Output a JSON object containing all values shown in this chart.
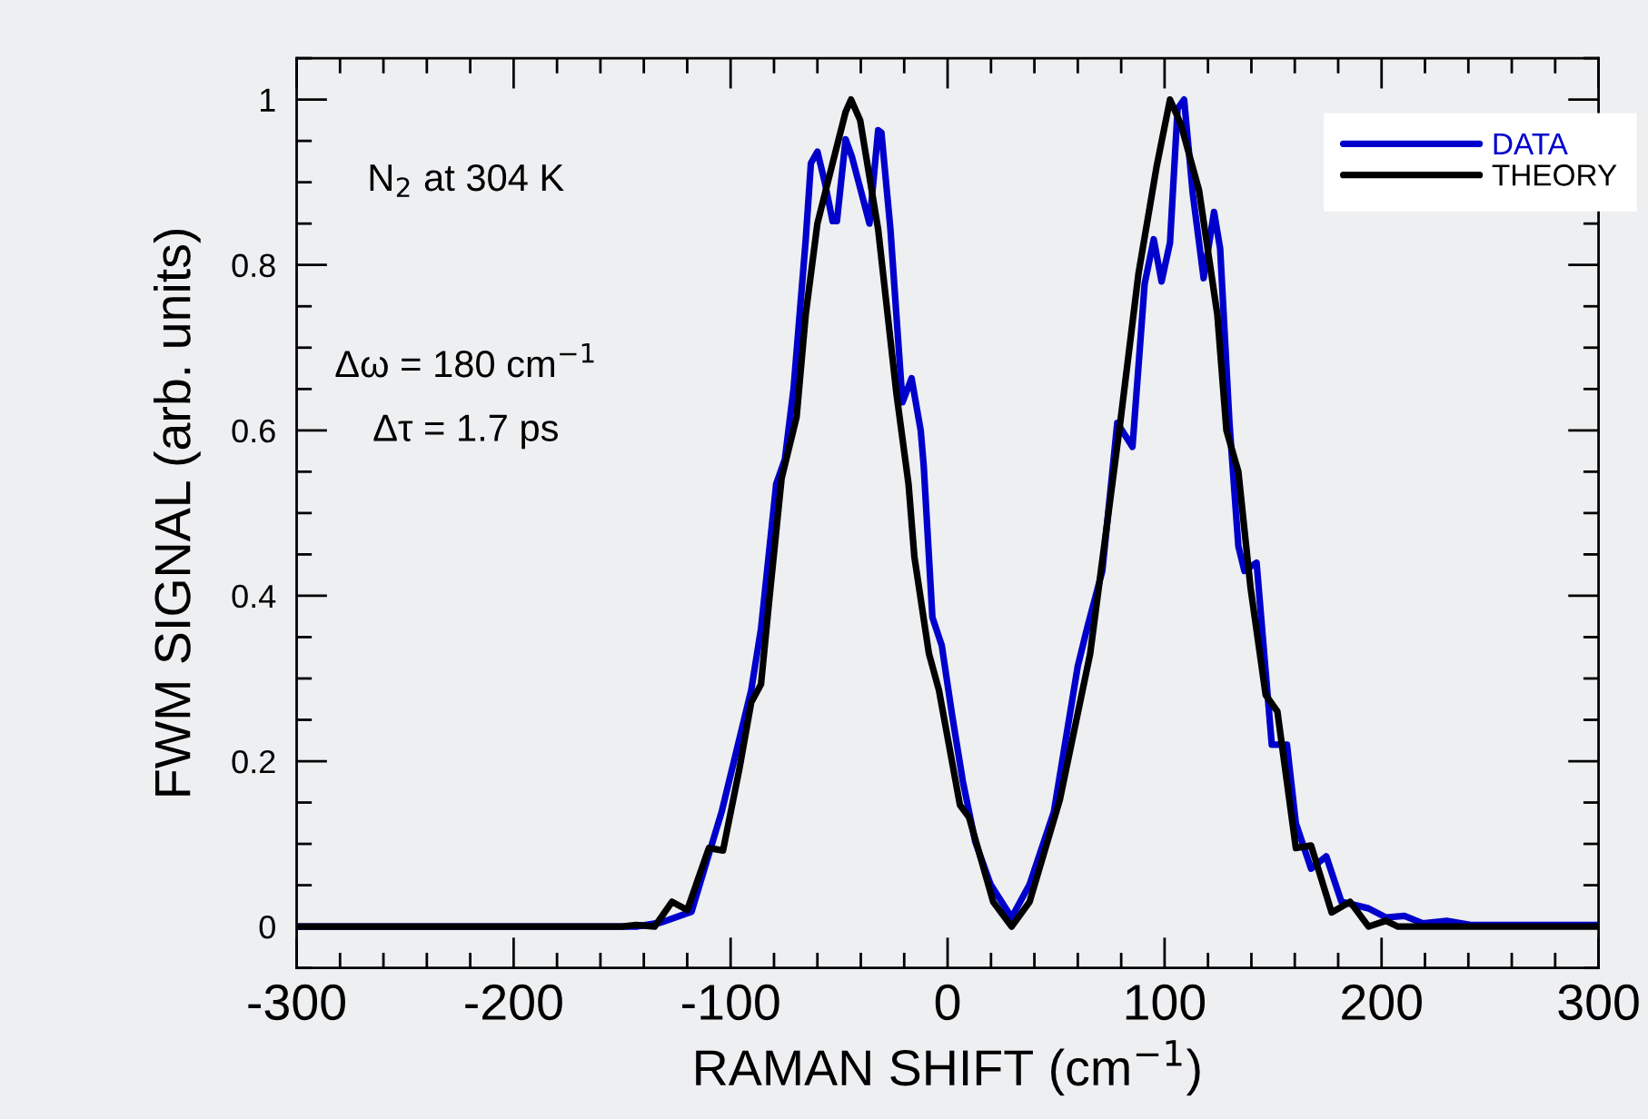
{
  "chart_data": {
    "type": "line",
    "xlabel": "RAMAN SHIFT (cm$^{−1}$)",
    "ylabel": "FWM SIGNAL (arb. units)",
    "xlim": [
      -300,
      300
    ],
    "ylim": [
      -0.05,
      1.05
    ],
    "xticks": [
      -300,
      -200,
      -100,
      0,
      100,
      200,
      300
    ],
    "yticks": [
      0,
      0.2,
      0.4,
      0.6,
      0.8,
      1
    ],
    "grid": false,
    "legend": "top right",
    "marker": "none",
    "line_style": "solid",
    "annotations": [
      "N$_{2}$ at 304 K",
      "Δω = 180 cm$^{−1}$",
      "Δτ = 1.7 ps"
    ],
    "series": [
      {
        "name": "DATA",
        "color": "#0000cc",
        "x": [
          -300,
          -190,
          -143.5,
          -132,
          -118,
          -104,
          -90.5,
          -86,
          -79,
          -75,
          -71,
          -65.4,
          -63,
          -60,
          -56.6,
          -53,
          -51,
          -47,
          -44,
          -36,
          -32,
          -30.5,
          -26.4,
          -20.8,
          -16.6,
          -12.4,
          -11,
          -7,
          -2.7,
          2,
          7,
          12.7,
          19.8,
          29.5,
          37.8,
          49,
          60,
          64.5,
          71.3,
          78.2,
          85.2,
          90.8,
          95,
          98.6,
          102.5,
          106,
          109,
          113,
          118,
          122.8,
          125.6,
          129.9,
          134,
          136.8,
          142.4,
          149.4,
          156.4,
          160.5,
          167.5,
          174.5,
          181.5,
          194,
          202,
          210.5,
          219,
          230,
          241,
          300
        ],
        "values": [
          0,
          0,
          0,
          0.005,
          0.018,
          0.14,
          0.286,
          0.36,
          0.535,
          0.565,
          0.65,
          0.83,
          0.923,
          0.937,
          0.9,
          0.853,
          0.853,
          0.952,
          0.93,
          0.85,
          0.963,
          0.96,
          0.845,
          0.634,
          0.663,
          0.6,
          0.557,
          0.374,
          0.34,
          0.257,
          0.176,
          0.103,
          0.051,
          0.011,
          0.051,
          0.139,
          0.315,
          0.363,
          0.43,
          0.609,
          0.58,
          0.777,
          0.831,
          0.78,
          0.827,
          0.989,
          1.0,
          0.886,
          0.784,
          0.864,
          0.82,
          0.609,
          0.46,
          0.43,
          0.44,
          0.22,
          0.22,
          0.125,
          0.07,
          0.085,
          0.03,
          0.022,
          0.011,
          0.013,
          0.004,
          0.007,
          0.002,
          0.002
        ]
      },
      {
        "name": "THEORY",
        "color": "#000000",
        "x": [
          -300,
          -150,
          -143.5,
          -135,
          -127,
          -120,
          -110,
          -103.5,
          -96,
          -90.5,
          -86,
          -82,
          -76.5,
          -69.6,
          -65.4,
          -60,
          -53,
          -47,
          -44.5,
          -40.3,
          -32,
          -23.6,
          -18,
          -15.3,
          -8.6,
          -4,
          5.7,
          9.9,
          21,
          29.5,
          37.8,
          51.7,
          65.7,
          79.6,
          88,
          96.4,
          102.5,
          107.5,
          115.9,
          124.3,
          128.5,
          134,
          139.6,
          146.6,
          152,
          160.5,
          167.5,
          177,
          185.5,
          194,
          202,
          207.6,
          300
        ],
        "values": [
          0,
          0,
          0.002,
          0,
          0.03,
          0.02,
          0.095,
          0.092,
          0.19,
          0.271,
          0.293,
          0.4,
          0.542,
          0.616,
          0.74,
          0.85,
          0.923,
          0.985,
          1.0,
          0.975,
          0.843,
          0.645,
          0.535,
          0.447,
          0.33,
          0.286,
          0.147,
          0.132,
          0.03,
          0.0,
          0.03,
          0.153,
          0.33,
          0.61,
          0.79,
          0.92,
          1.0,
          0.97,
          0.89,
          0.74,
          0.6,
          0.55,
          0.41,
          0.28,
          0.26,
          0.095,
          0.098,
          0.017,
          0.03,
          0.0,
          0.007,
          0,
          0
        ]
      }
    ]
  }
}
